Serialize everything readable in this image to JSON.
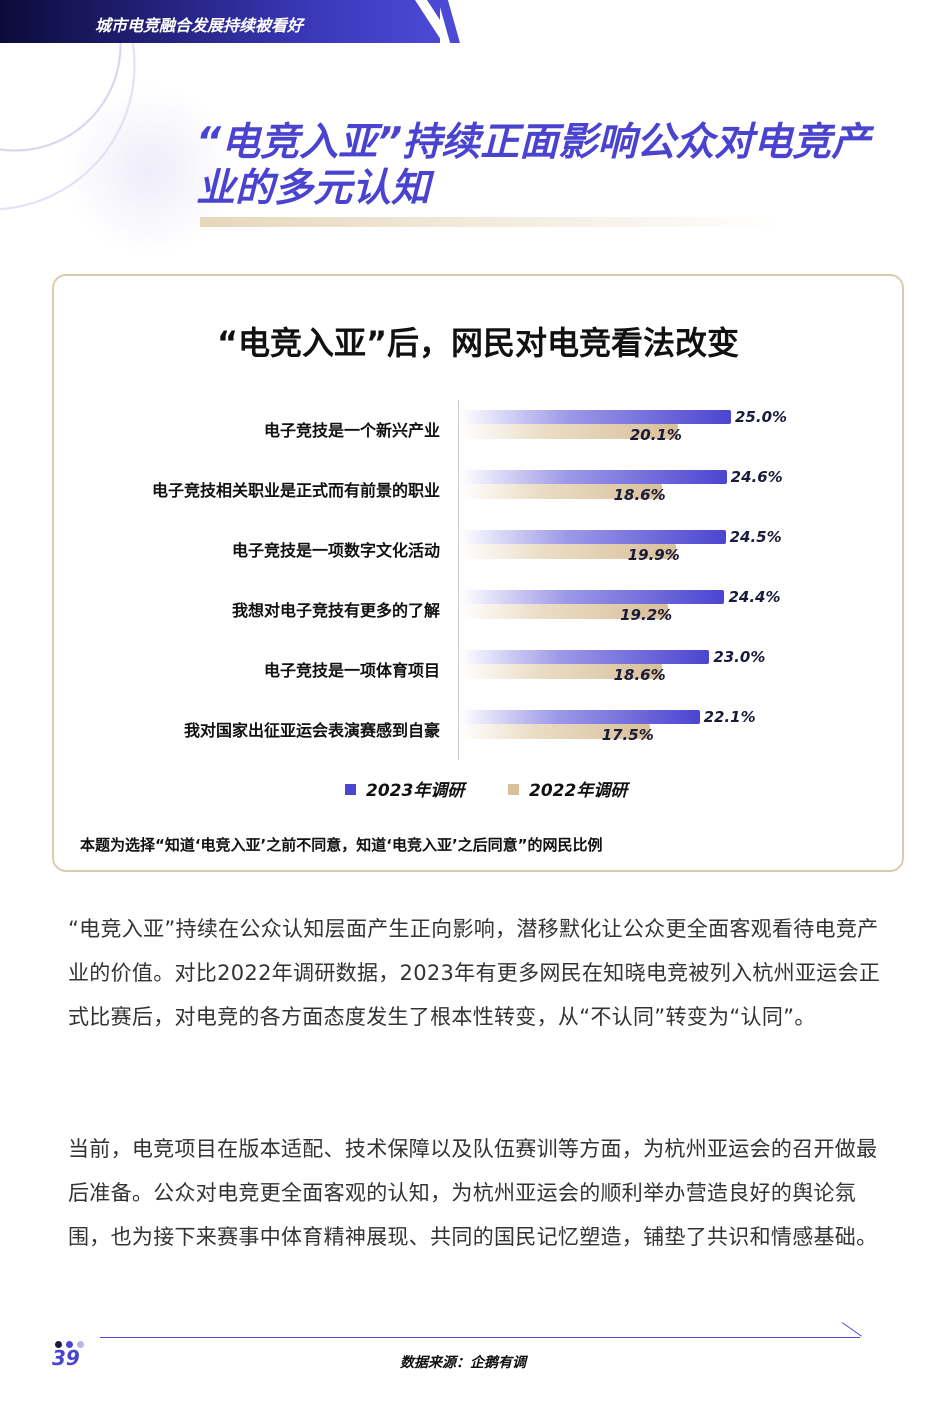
{
  "header": {
    "section": "城市电竞融合发展持续被看好"
  },
  "page_title": "“电竞入亚”持续正面影响公众对电竞产业的多元认知",
  "colors": {
    "accent": "#4a43cf",
    "series_2023": "#4b45d0",
    "series_2022": "#d8c09a",
    "card_border": "#dccbab"
  },
  "chart_data": {
    "type": "bar",
    "orientation": "horizontal",
    "title": "“电竞入亚”后，网民对电竞看法改变",
    "categories": [
      "电子竞技是一个新兴产业",
      "电子竞技相关职业是正式而有前景的职业",
      "电子竞技是一项数字文化活动",
      "我想对电子竞技有更多的了解",
      "电子竞技是一项体育项目",
      "我对国家出征亚运会表演赛感到自豪"
    ],
    "series": [
      {
        "name": "2023年调研",
        "values": [
          25.0,
          24.6,
          24.5,
          24.4,
          23.0,
          22.1
        ],
        "labels": [
          "25.0%",
          "24.6%",
          "24.5%",
          "24.4%",
          "23.0%",
          "22.1%"
        ]
      },
      {
        "name": "2022年调研",
        "values": [
          20.1,
          18.6,
          19.9,
          19.2,
          18.6,
          17.5
        ],
        "labels": [
          "20.1%",
          "18.6%",
          "19.9%",
          "19.2%",
          "18.6%",
          "17.5%"
        ]
      }
    ],
    "unit": "%",
    "legend_position": "bottom",
    "grid": false,
    "note": "本题为选择“知道‘电竞入亚’之前不同意，知道‘电竞入亚’之后同意”的网民比例"
  },
  "body": {
    "p1": "“电竞入亚”持续在公众认知层面产生正向影响，潜移默化让公众更全面客观看待电竞产业的价值。对比2022年调研数据，2023年有更多网民在知晓电竞被列入杭州亚运会正式比赛后，对电竞的各方面态度发生了根本性转变，从“不认同”转变为“认同”。",
    "p2": "当前，电竞项目在版本适配、技术保障以及队伍赛训等方面，为杭州亚运会的召开做最后准备。公众对电竞更全面客观的认知，为杭州亚运会的顺利举办营造良好的舆论氛围，也为接下来赛事中体育精神展现、共同的国民记忆塑造，铺垫了共识和情感基础。"
  },
  "footer": {
    "page_number": "39",
    "source": "数据来源：企鹅有调"
  }
}
